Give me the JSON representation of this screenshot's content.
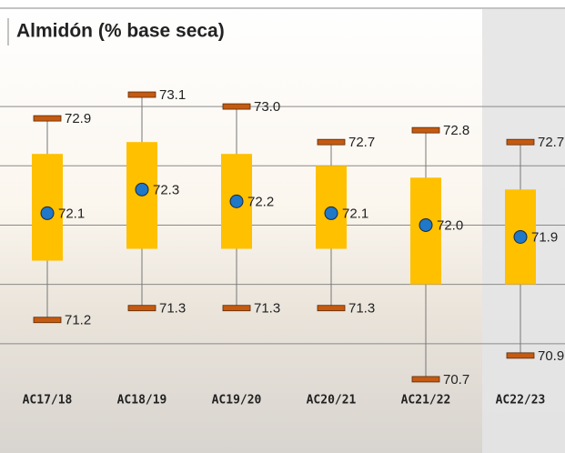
{
  "chart_data": {
    "type": "box",
    "title": "Almidón (% base seca)",
    "categories": [
      "AC17/18",
      "AC18/19",
      "AC19/20",
      "AC20/21",
      "AC21/22",
      "AC22/23"
    ],
    "max": [
      72.9,
      73.1,
      73.0,
      72.7,
      72.8,
      72.7
    ],
    "max_value_labels": [
      "72.9",
      "73.1",
      "73.0",
      "72.7",
      "72.8",
      "72.7"
    ],
    "q3": [
      72.6,
      72.7,
      72.6,
      72.5,
      72.4,
      72.3
    ],
    "mean": [
      72.1,
      72.3,
      72.2,
      72.1,
      72.0,
      71.9
    ],
    "mean_value_labels": [
      "72.1",
      "72.3",
      "72.2",
      "72.1",
      "72.0",
      "71.9"
    ],
    "q1": [
      71.7,
      71.8,
      71.8,
      71.8,
      71.5,
      71.5
    ],
    "min": [
      71.2,
      71.3,
      71.3,
      71.3,
      70.7,
      70.9
    ],
    "min_value_labels": [
      "71.2",
      "71.3",
      "71.3",
      "71.3",
      "70.7",
      "70.9"
    ],
    "ylim": [
      70.5,
      73.2
    ],
    "gridlines": [
      71.0,
      71.5,
      72.0,
      72.5,
      73.0
    ],
    "box_color": "#ffc000",
    "extreme_color": "#c55a11",
    "mean_color": "#1f78c8"
  }
}
